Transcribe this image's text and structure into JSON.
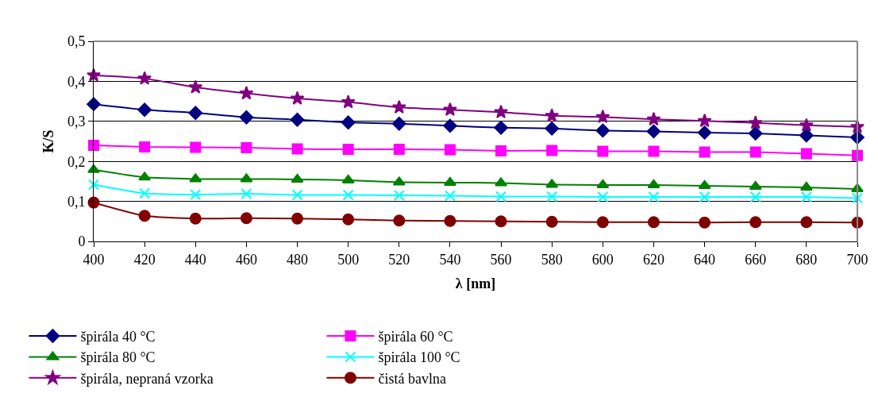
{
  "chart_data": {
    "type": "line",
    "xlabel": "λ [nm]",
    "ylabel": "K/S",
    "x": [
      400,
      420,
      440,
      460,
      480,
      500,
      520,
      540,
      560,
      580,
      600,
      620,
      640,
      660,
      680,
      700
    ],
    "xlim": [
      400,
      700
    ],
    "xticks": [
      400,
      420,
      440,
      460,
      480,
      500,
      520,
      540,
      560,
      580,
      600,
      620,
      640,
      660,
      680,
      700
    ],
    "ylim": [
      0,
      0.5
    ],
    "yticks": [
      {
        "value": 0,
        "label": "0"
      },
      {
        "value": 0.1,
        "label": "0,1"
      },
      {
        "value": 0.2,
        "label": "0,2"
      },
      {
        "value": 0.3,
        "label": "0,3"
      },
      {
        "value": 0.4,
        "label": "0,4"
      },
      {
        "value": 0.5,
        "label": "0,5"
      }
    ],
    "grid": "y",
    "legend": "bottom",
    "line_style": "solid",
    "series": [
      {
        "name": "špirála 40 °C",
        "color": "#000080",
        "marker": "diamond",
        "values": [
          0.343,
          0.329,
          0.321,
          0.31,
          0.304,
          0.297,
          0.294,
          0.289,
          0.284,
          0.282,
          0.277,
          0.275,
          0.272,
          0.27,
          0.265,
          0.26
        ]
      },
      {
        "name": "špirála 60 °C",
        "color": "#ff00ff",
        "marker": "square",
        "values": [
          0.24,
          0.236,
          0.235,
          0.234,
          0.231,
          0.23,
          0.23,
          0.229,
          0.226,
          0.227,
          0.225,
          0.225,
          0.223,
          0.223,
          0.219,
          0.215
        ]
      },
      {
        "name": "špirála 80 °C",
        "color": "#008000",
        "marker": "triangle",
        "values": [
          0.179,
          0.16,
          0.156,
          0.156,
          0.155,
          0.153,
          0.148,
          0.147,
          0.146,
          0.142,
          0.141,
          0.141,
          0.139,
          0.137,
          0.135,
          0.131
        ]
      },
      {
        "name": "špirála 100 °C",
        "color": "#00ffff",
        "marker": "cross",
        "values": [
          0.142,
          0.12,
          0.117,
          0.119,
          0.116,
          0.116,
          0.115,
          0.114,
          0.112,
          0.112,
          0.111,
          0.111,
          0.111,
          0.111,
          0.111,
          0.108
        ]
      },
      {
        "name": "špirála, nepraná vzorka",
        "color": "#800080",
        "marker": "star",
        "values": [
          0.415,
          0.407,
          0.385,
          0.37,
          0.357,
          0.348,
          0.335,
          0.329,
          0.323,
          0.314,
          0.311,
          0.305,
          0.301,
          0.296,
          0.29,
          0.286
        ]
      },
      {
        "name": "čistá bavlna",
        "color": "#800000",
        "marker": "circle",
        "values": [
          0.097,
          0.064,
          0.057,
          0.058,
          0.057,
          0.055,
          0.052,
          0.051,
          0.05,
          0.049,
          0.048,
          0.048,
          0.047,
          0.048,
          0.048,
          0.047
        ]
      }
    ]
  }
}
